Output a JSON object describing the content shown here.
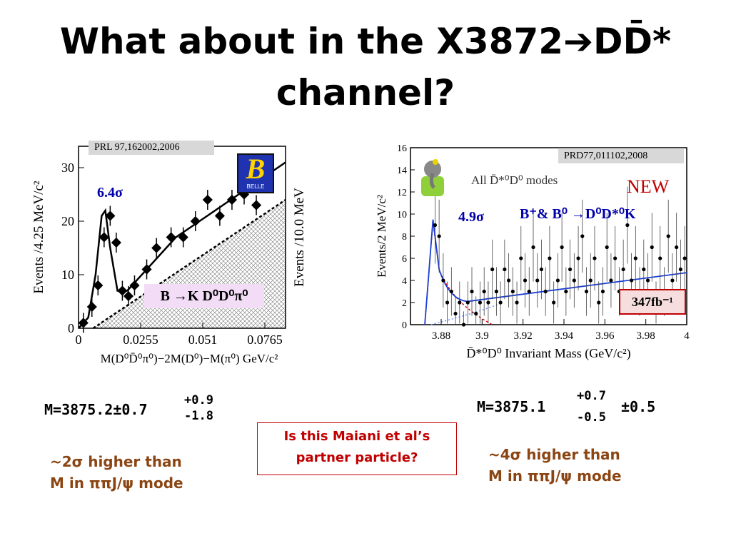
{
  "slide": {
    "title_line1_pre": "What about in the X3872",
    "title_arrow": "➔",
    "title_line1_post": "DD̄*",
    "title_line2": "channel?"
  },
  "left_plot": {
    "ref": "PRL 97,162002,2006",
    "significance": "6.4σ",
    "mode_label": "B →K D⁰D⁰π⁰",
    "logo_text": "B",
    "logo_sub": "BELLE",
    "ylabel_left": "Events /4.25 MeV/c²",
    "ylabel_right": "Events /10.0 MeV",
    "xlabel": "M(D⁰D̄⁰π⁰)−2M(D⁰)−M(π⁰) GeV/c²",
    "xticks": [
      "0",
      "0.0255",
      "0.051",
      "0.0765"
    ],
    "yticks": [
      "0",
      "10",
      "20",
      "30"
    ]
  },
  "right_plot": {
    "ref": "PRD77,011102,2008",
    "new_label": "NEW",
    "legend": "All D̄*⁰D⁰ modes",
    "significance": "4.9σ",
    "mode_label": "B⁺& B⁰ →D⁰D*⁰K",
    "lumi": "347fb⁻¹",
    "ylabel": "Events/2 MeV/c²",
    "xlabel": "D̄*⁰D⁰ Invariant Mass (GeV/c²)",
    "xticks": [
      "3.88",
      "3.9",
      "3.92",
      "3.94",
      "3.96",
      "3.98",
      "4"
    ],
    "yticks": [
      "0",
      "2",
      "4",
      "6",
      "8",
      "10",
      "12",
      "14",
      "16"
    ]
  },
  "left_result": {
    "mass": "M=3875.2±0.7",
    "err_up": "+0.9",
    "err_down": "-1.8",
    "note_line1": "~2σ higher than",
    "note_line2": "M in ππJ/ψ mode"
  },
  "right_result": {
    "mass": "M=3875.1",
    "err_up": "+0.7",
    "err_down": "-0.5",
    "syst": "±0.5",
    "note_line1": "~4σ higher than",
    "note_line2": "M in ππJ/ψ mode"
  },
  "question": {
    "line1": "Is this Maiani et al’s",
    "line2": "partner particle?"
  },
  "colors": {
    "accent_red": "#c00000",
    "note_brown": "#8b4513",
    "label_blue": "#0000aa",
    "fit_blue": "#1a3fd6"
  },
  "chart_data": [
    {
      "type": "scatter",
      "xlabel": "M(D⁰D̄⁰π⁰)−2M(D⁰)−M(π⁰) GeV/c²",
      "ylabel": "Events /4.25 MeV/c²",
      "xlim": [
        0,
        0.085
      ],
      "ylim": [
        0,
        34
      ],
      "series": [
        {
          "x": [
            0.002,
            0.0055,
            0.008,
            0.0105,
            0.013,
            0.0155,
            0.018,
            0.0205,
            0.023,
            0.028,
            0.032,
            0.038,
            0.043,
            0.048,
            0.053,
            0.058,
            0.063,
            0.068,
            0.073
          ],
          "y": [
            1,
            4,
            8,
            17,
            21,
            16,
            7,
            6,
            8,
            11,
            15,
            17,
            17,
            20,
            24,
            21,
            24,
            25,
            23
          ]
        }
      ]
    },
    {
      "type": "scatter",
      "xlabel": "D̄*⁰D⁰ Invariant Mass (GeV/c²)",
      "ylabel": "Events/2 MeV/c²",
      "xlim": [
        3.865,
        4.0
      ],
      "ylim": [
        0,
        16
      ],
      "series": [
        {
          "x": [
            3.877,
            3.879,
            3.881,
            3.883,
            3.885,
            3.887,
            3.889,
            3.891,
            3.893,
            3.895,
            3.897,
            3.899,
            3.901,
            3.903,
            3.905,
            3.907,
            3.909,
            3.911,
            3.913,
            3.915,
            3.917,
            3.919,
            3.921,
            3.923,
            3.925,
            3.927,
            3.929,
            3.931,
            3.933,
            3.935,
            3.937,
            3.939,
            3.941,
            3.943,
            3.945,
            3.947,
            3.949,
            3.951,
            3.953,
            3.955,
            3.957,
            3.959,
            3.961,
            3.963,
            3.965,
            3.967,
            3.969,
            3.971,
            3.973,
            3.975,
            3.977,
            3.979,
            3.981,
            3.983,
            3.985,
            3.987,
            3.989,
            3.991,
            3.993,
            3.995,
            3.997,
            3.999
          ],
          "y": [
            9,
            8,
            4,
            2,
            3,
            1,
            2,
            0,
            2,
            3,
            1,
            2,
            3,
            2,
            5,
            3,
            2,
            5,
            4,
            3,
            2,
            6,
            4,
            3,
            7,
            4,
            5,
            3,
            6,
            2,
            4,
            7,
            3,
            5,
            4,
            6,
            8,
            3,
            4,
            6,
            2,
            3,
            7,
            4,
            6,
            3,
            5,
            9,
            4,
            6,
            3,
            5,
            4,
            7,
            2,
            6,
            3,
            8,
            4,
            7,
            5,
            6
          ]
        }
      ]
    }
  ]
}
